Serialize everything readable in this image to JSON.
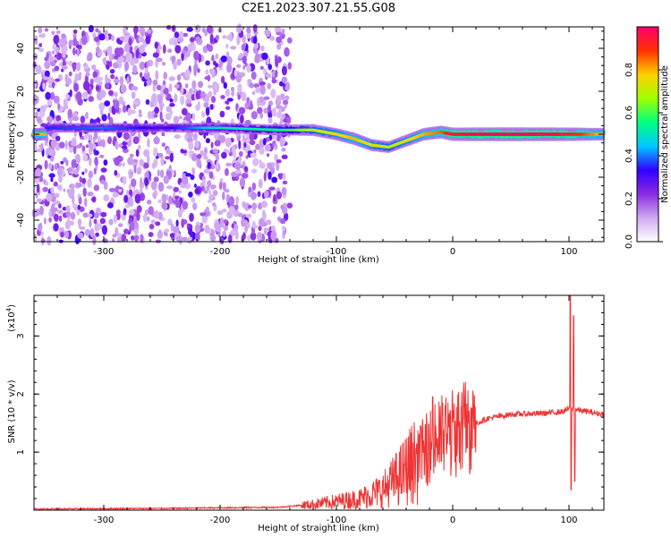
{
  "title": "C2E1.2023.307.21.55.G08",
  "chart_data": [
    {
      "type": "heatmap",
      "xlabel": "Height of straight line (km)",
      "ylabel": "Frequency (Hz)",
      "xlim": [
        -360,
        130
      ],
      "ylim": [
        -50,
        50
      ],
      "x_ticks": [
        -300,
        -200,
        -100,
        0,
        100
      ],
      "x_tick_labels": [
        "-300",
        "-200",
        "-100",
        "0",
        "100"
      ],
      "y_ticks": [
        -40,
        -20,
        0,
        20,
        40
      ],
      "y_tick_labels": [
        "-40",
        "-20",
        "0",
        "20",
        "40"
      ],
      "colorbar": {
        "label": "Normalized spectral amplitude",
        "range": [
          0,
          1
        ],
        "ticks": [
          0.0,
          0.2,
          0.4,
          0.6,
          0.8
        ],
        "tick_labels": [
          "0.0",
          "0.2",
          "0.4",
          "0.6",
          "0.8"
        ],
        "colormap": [
          "#ffffff",
          "#cfa8f0",
          "#8a2be2",
          "#3000ff",
          "#00c8ff",
          "#00ff80",
          "#a0ff00",
          "#ffd000",
          "#ff3000",
          "#ff0070"
        ]
      },
      "noise_region_x": [
        -360,
        -140
      ],
      "signal_band_center_hz": 0,
      "signal_band": [
        {
          "x": -350,
          "y": 3,
          "a": 0.35
        },
        {
          "x": -300,
          "y": 3,
          "a": 0.4
        },
        {
          "x": -250,
          "y": 3,
          "a": 0.3
        },
        {
          "x": -200,
          "y": 3,
          "a": 0.5
        },
        {
          "x": -150,
          "y": 2,
          "a": 0.55
        },
        {
          "x": -120,
          "y": 2,
          "a": 0.7
        },
        {
          "x": -100,
          "y": 0,
          "a": 0.75
        },
        {
          "x": -85,
          "y": -2,
          "a": 0.8
        },
        {
          "x": -70,
          "y": -5,
          "a": 0.75
        },
        {
          "x": -55,
          "y": -6,
          "a": 0.7
        },
        {
          "x": -40,
          "y": -3,
          "a": 0.75
        },
        {
          "x": -25,
          "y": 0,
          "a": 0.8
        },
        {
          "x": -10,
          "y": 1,
          "a": 0.85
        },
        {
          "x": 0,
          "y": 0,
          "a": 0.95
        },
        {
          "x": 50,
          "y": 0,
          "a": 1.0
        },
        {
          "x": 100,
          "y": 0,
          "a": 0.95
        },
        {
          "x": 125,
          "y": 0,
          "a": 0.8
        }
      ]
    },
    {
      "type": "line",
      "xlabel": "Height of straight line (km)",
      "ylabel": "SNR (10 * v/v)",
      "y_scale_label": "(x10",
      "y_scale_exp": "4",
      "y_scale_close": ")",
      "xlim": [
        -360,
        130
      ],
      "ylim": [
        0,
        3.7
      ],
      "x_ticks": [
        -300,
        -200,
        -100,
        0,
        100
      ],
      "x_tick_labels": [
        "-300",
        "-200",
        "-100",
        "0",
        "100"
      ],
      "y_ticks": [
        1,
        2,
        3
      ],
      "y_tick_labels": [
        "1",
        "2",
        "3"
      ],
      "color": "#ee3333",
      "envelope": [
        {
          "x": -360,
          "y": 0.02
        },
        {
          "x": -250,
          "y": 0.03
        },
        {
          "x": -150,
          "y": 0.05
        },
        {
          "x": -120,
          "y": 0.1
        },
        {
          "x": -100,
          "y": 0.15
        },
        {
          "x": -80,
          "y": 0.2
        },
        {
          "x": -60,
          "y": 0.35
        },
        {
          "x": -45,
          "y": 0.6
        },
        {
          "x": -35,
          "y": 0.8
        },
        {
          "x": -25,
          "y": 1.0
        },
        {
          "x": -15,
          "y": 1.2
        },
        {
          "x": -5,
          "y": 1.3
        },
        {
          "x": 5,
          "y": 1.35
        },
        {
          "x": 15,
          "y": 1.45
        },
        {
          "x": 30,
          "y": 1.58
        },
        {
          "x": 50,
          "y": 1.65
        },
        {
          "x": 80,
          "y": 1.67
        },
        {
          "x": 95,
          "y": 1.7
        },
        {
          "x": 100,
          "y": 1.75
        },
        {
          "x": 130,
          "y": 1.65
        }
      ],
      "spikes": [
        {
          "x": -17,
          "y": 1.95
        },
        {
          "x": 101,
          "y": 3.7
        },
        {
          "x": 102,
          "y": 0.35
        },
        {
          "x": 104,
          "y": 3.35
        },
        {
          "x": 105,
          "y": 0.5
        }
      ]
    }
  ]
}
